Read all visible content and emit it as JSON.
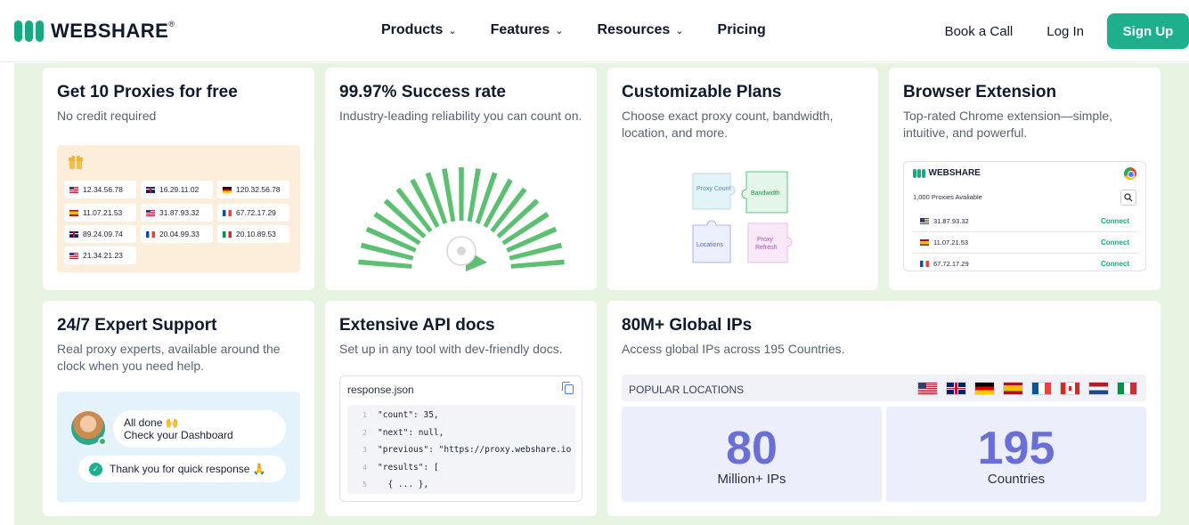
{
  "header": {
    "logo_text": "WEBSHARE",
    "logo_mark": "®",
    "nav": [
      {
        "label": "Products",
        "has_dropdown": true
      },
      {
        "label": "Features",
        "has_dropdown": true
      },
      {
        "label": "Resources",
        "has_dropdown": true
      },
      {
        "label": "Pricing",
        "has_dropdown": false
      }
    ],
    "book_call": "Book a Call",
    "login": "Log In",
    "signup": "Sign Up"
  },
  "colors": {
    "brand": "#1eb08d",
    "background": "#e6f4e1",
    "stat": "#6a6fd6"
  },
  "cards": {
    "free": {
      "title": "Get 10 Proxies for free",
      "subtitle": "No credit required",
      "icon": "gift-icon",
      "ips": [
        {
          "flag": "us",
          "ip": "12.34.56.78"
        },
        {
          "flag": "gb",
          "ip": "16.29.11.02"
        },
        {
          "flag": "de",
          "ip": "120.32.56.78"
        },
        {
          "flag": "es",
          "ip": "11.07.21.53"
        },
        {
          "flag": "us",
          "ip": "31.87.93.32"
        },
        {
          "flag": "fr",
          "ip": "67.72.17.29"
        },
        {
          "flag": "gb",
          "ip": "89.24.09.74"
        },
        {
          "flag": "fr",
          "ip": "20.04.99.33"
        },
        {
          "flag": "it",
          "ip": "20.10.89.53"
        },
        {
          "flag": "us",
          "ip": "21.34.21.23"
        }
      ]
    },
    "success": {
      "title": "99.97% Success rate",
      "subtitle": "Industry-leading reliability you can count on."
    },
    "plans": {
      "title": "Customizable Plans",
      "subtitle": "Choose exact proxy count, bandwidth, location, and more.",
      "pieces": [
        "Proxy Count",
        "Bandwidth",
        "Locations",
        "Proxy Refresh"
      ]
    },
    "extension": {
      "title": "Browser Extension",
      "subtitle": "Top-rated Chrome extension—simple, intuitive, and powerful.",
      "app_name": "WEBSHARE",
      "count_text": "1,000 Proxies Avaliable",
      "rows": [
        {
          "flag": "us",
          "ip": "31.87.93.32",
          "action": "Connect"
        },
        {
          "flag": "es",
          "ip": "11.07.21.53",
          "action": "Connect"
        },
        {
          "flag": "fr",
          "ip": "67.72.17.29",
          "action": "Connect"
        }
      ]
    },
    "support": {
      "title": "24/7 Expert Support",
      "subtitle": "Real proxy experts, available around the clock when you need help.",
      "msg1_line1": "All done 🙌",
      "msg1_line2": "Check your Dashboard",
      "msg2": "Thank you for quick response 🙏"
    },
    "api": {
      "title": "Extensive API docs",
      "subtitle": "Set up in any tool with dev-friendly docs.",
      "file": "response.json",
      "lines": [
        {
          "n": "1",
          "code": "\"count\": 35,"
        },
        {
          "n": "2",
          "code": "\"next\": null,"
        },
        {
          "n": "3",
          "code": "\"previous\": \"https://proxy.webshare.io"
        },
        {
          "n": "4",
          "code": "\"results\": ["
        },
        {
          "n": "5",
          "code": "  { ... },"
        }
      ]
    },
    "global": {
      "title": "80M+ Global IPs",
      "subtitle": "Access global IPs across 195 Countries.",
      "popular_label": "POPULAR LOCATIONS",
      "flags": [
        "us",
        "gb",
        "de",
        "es",
        "fr",
        "ca",
        "nl",
        "it"
      ],
      "stats": [
        {
          "value": "80",
          "label": "Million+ IPs"
        },
        {
          "value": "195",
          "label": "Countries"
        }
      ]
    }
  }
}
